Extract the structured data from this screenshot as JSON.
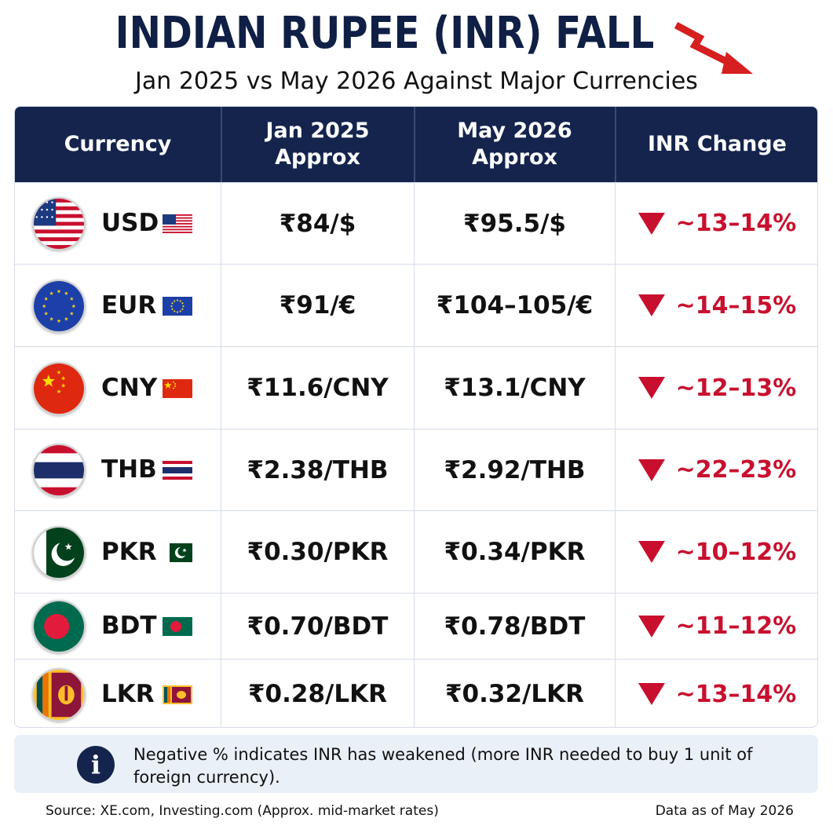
{
  "title": "INDIAN RUPEE (INR) FALL",
  "subtitle": "Jan 2025 vs May 2026 Against Major Currencies",
  "headers": {
    "currency": "Currency",
    "jan": "Jan 2025\nApprox",
    "may": "May 2026\nApprox",
    "change": "INR Change"
  },
  "rows": [
    {
      "code": "USD",
      "jan": "₹84/$",
      "may": "₹95.5/$",
      "change": "~13–14%",
      "flag": "usa-flag"
    },
    {
      "code": "EUR",
      "jan": "₹91/€",
      "may": "₹104–105/€",
      "change": "~14–15%",
      "flag": "eu-flag"
    },
    {
      "code": "CNY",
      "jan": "₹11.6/CNY",
      "may": "₹13.1/CNY",
      "change": "~12–13%",
      "flag": "china-flag"
    },
    {
      "code": "THB",
      "jan": "₹2.38/THB",
      "may": "₹2.92/THB",
      "change": "~22–23%",
      "flag": "thailand-flag"
    },
    {
      "code": "PKR",
      "jan": "₹0.30/PKR",
      "may": "₹0.34/PKR",
      "change": "~10–12%",
      "flag": "pakistan-flag"
    },
    {
      "code": "BDT",
      "jan": "₹0.70/BDT",
      "may": "₹0.78/BDT",
      "change": "~11–12%",
      "flag": "bangladesh-flag"
    },
    {
      "code": "LKR",
      "jan": "₹0.28/LKR",
      "may": "₹0.32/LKR",
      "change": "~13–14%",
      "flag": "srilanka-flag"
    }
  ],
  "note": "Negative % indicates INR has weakened (more INR needed to buy 1 unit of foreign currency).",
  "source": "Source: XE.com, Investing.com (Approx. mid-market rates)",
  "as_of": "Data as of May 2026",
  "colors": {
    "navy": "#14244d",
    "down_red": "#c8102e",
    "note_bg": "#eaf0f8"
  }
}
